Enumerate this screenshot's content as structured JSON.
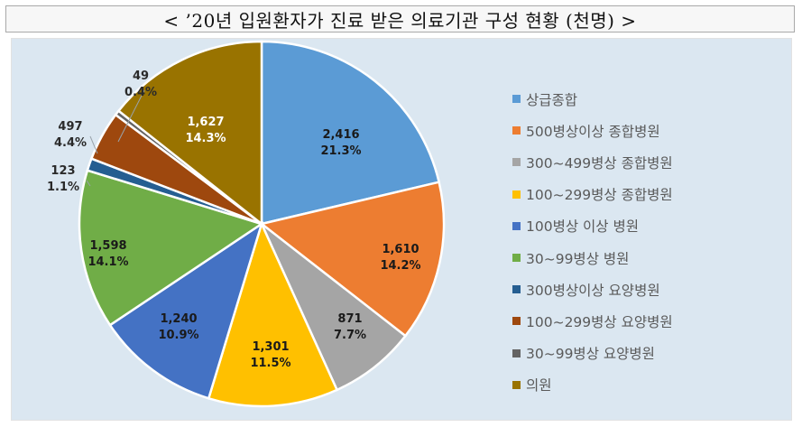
{
  "title": "< ’20년 입원환자가 진료 받은 의료기관 구성 현황 (천명) >",
  "chart_data": {
    "type": "pie",
    "start_angle_deg": 0,
    "direction": "clockwise",
    "legend_position": "right",
    "slices": [
      {
        "name": "상급종합",
        "value": 2416,
        "percent": "21.3%",
        "value_label": "2,416",
        "color": "#5b9bd5",
        "label_color": "#1a1a1a"
      },
      {
        "name": "500병상이상 종합병원",
        "value": 1610,
        "percent": "14.2%",
        "value_label": "1,610",
        "color": "#ed7d31",
        "label_color": "#1a1a1a"
      },
      {
        "name": "300~499병상 종합병원",
        "value": 871,
        "percent": "7.7%",
        "value_label": "871",
        "color": "#a5a5a5",
        "label_color": "#1a1a1a"
      },
      {
        "name": "100~299병상 종합병원",
        "value": 1301,
        "percent": "11.5%",
        "value_label": "1,301",
        "color": "#ffc000",
        "label_color": "#1a1a1a"
      },
      {
        "name": "100병상 이상 병원",
        "value": 1240,
        "percent": "10.9%",
        "value_label": "1,240",
        "color": "#4472c4",
        "label_color": "#1a1a1a"
      },
      {
        "name": "30~99병상 병원",
        "value": 1598,
        "percent": "14.1%",
        "value_label": "1,598",
        "color": "#70ad47",
        "label_color": "#1a1a1a"
      },
      {
        "name": "300병상이상 요양병원",
        "value": 123,
        "percent": "1.1%",
        "value_label": "123",
        "color": "#255e91",
        "label_color": "#2a2a2a"
      },
      {
        "name": "100~299병상 요양병원",
        "value": 497,
        "percent": "4.4%",
        "value_label": "497",
        "color": "#9e480e",
        "label_color": "#2a2a2a"
      },
      {
        "name": "30~99병상 요양병원",
        "value": 49,
        "percent": "0.4%",
        "value_label": "49",
        "color": "#636363",
        "label_color": "#2a2a2a"
      },
      {
        "name": "의원",
        "value": 1627,
        "percent": "14.3%",
        "value_label": "1,627",
        "color": "#997300",
        "label_color": "#ffffff"
      }
    ]
  }
}
